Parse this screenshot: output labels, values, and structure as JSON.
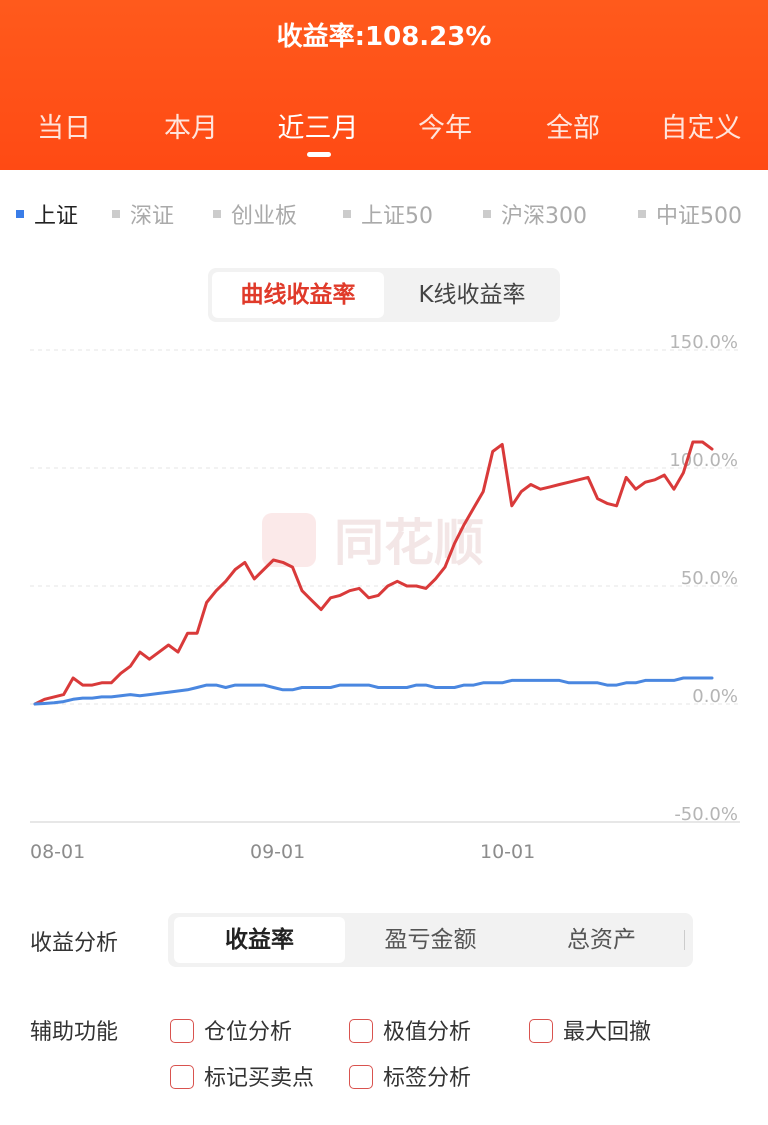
{
  "header": {
    "title": "收益率:108.23%"
  },
  "period_tabs": [
    {
      "label": "当日",
      "active": false
    },
    {
      "label": "本月",
      "active": false
    },
    {
      "label": "近三月",
      "active": true
    },
    {
      "label": "今年",
      "active": false
    },
    {
      "label": "全部",
      "active": false
    },
    {
      "label": "自定义",
      "active": false
    }
  ],
  "index_legend": [
    {
      "label": "上证",
      "active": true
    },
    {
      "label": "深证",
      "active": false
    },
    {
      "label": "创业板",
      "active": false
    },
    {
      "label": "上证50",
      "active": false
    },
    {
      "label": "沪深300",
      "active": false
    },
    {
      "label": "中证500",
      "active": false
    }
  ],
  "chart_toggle": {
    "options": [
      "曲线收益率",
      "K线收益率"
    ],
    "active": 0
  },
  "watermark": "同花顺",
  "chart_data": {
    "type": "line",
    "title": "",
    "xlabel": "",
    "ylabel": "",
    "x_ticks": [
      "08-01",
      "09-01",
      "10-01"
    ],
    "y_ticks": [
      "150.0%",
      "100.0%",
      "50.0%",
      "0.0%",
      "-50.0%"
    ],
    "ylim": [
      -50,
      150
    ],
    "grid": true,
    "series": [
      {
        "color": "#d93a3a",
        "values": [
          0,
          2,
          3,
          4,
          11,
          8,
          8,
          9,
          9,
          13,
          16,
          22,
          19,
          22,
          25,
          22,
          30,
          30,
          43,
          48,
          52,
          57,
          60,
          53,
          57,
          61,
          60,
          58,
          48,
          44,
          40,
          45,
          46,
          48,
          49,
          45,
          46,
          50,
          52,
          50,
          50,
          49,
          53,
          58,
          68,
          76,
          83,
          90,
          107,
          110,
          84,
          90,
          93,
          91,
          92,
          93,
          94,
          95,
          96,
          87,
          85,
          84,
          96,
          91,
          94,
          95,
          97,
          91,
          98,
          111,
          111,
          108
        ]
      },
      {
        "color": "#4a87e0",
        "values": [
          0,
          0.2,
          0.5,
          1,
          2,
          2.5,
          2.5,
          3,
          3,
          3.5,
          4,
          3.5,
          4,
          4.5,
          5,
          5.5,
          6,
          7,
          8,
          8,
          7,
          8,
          8,
          8,
          8,
          7,
          6,
          6,
          7,
          7,
          7,
          7,
          8,
          8,
          8,
          8,
          7,
          7,
          7,
          7,
          8,
          8,
          7,
          7,
          7,
          8,
          8,
          9,
          9,
          9,
          10,
          10,
          10,
          10,
          10,
          10,
          9,
          9,
          9,
          9,
          8,
          8,
          9,
          9,
          10,
          10,
          10,
          10,
          11,
          11,
          11,
          11
        ]
      }
    ]
  },
  "analysis": {
    "label": "收益分析",
    "segments": [
      "收益率",
      "盈亏金额",
      "总资产"
    ],
    "active": 0
  },
  "aux": {
    "label": "辅助功能",
    "options": [
      "仓位分析",
      "极值分析",
      "最大回撤",
      "标记买卖点",
      "标签分析"
    ]
  }
}
